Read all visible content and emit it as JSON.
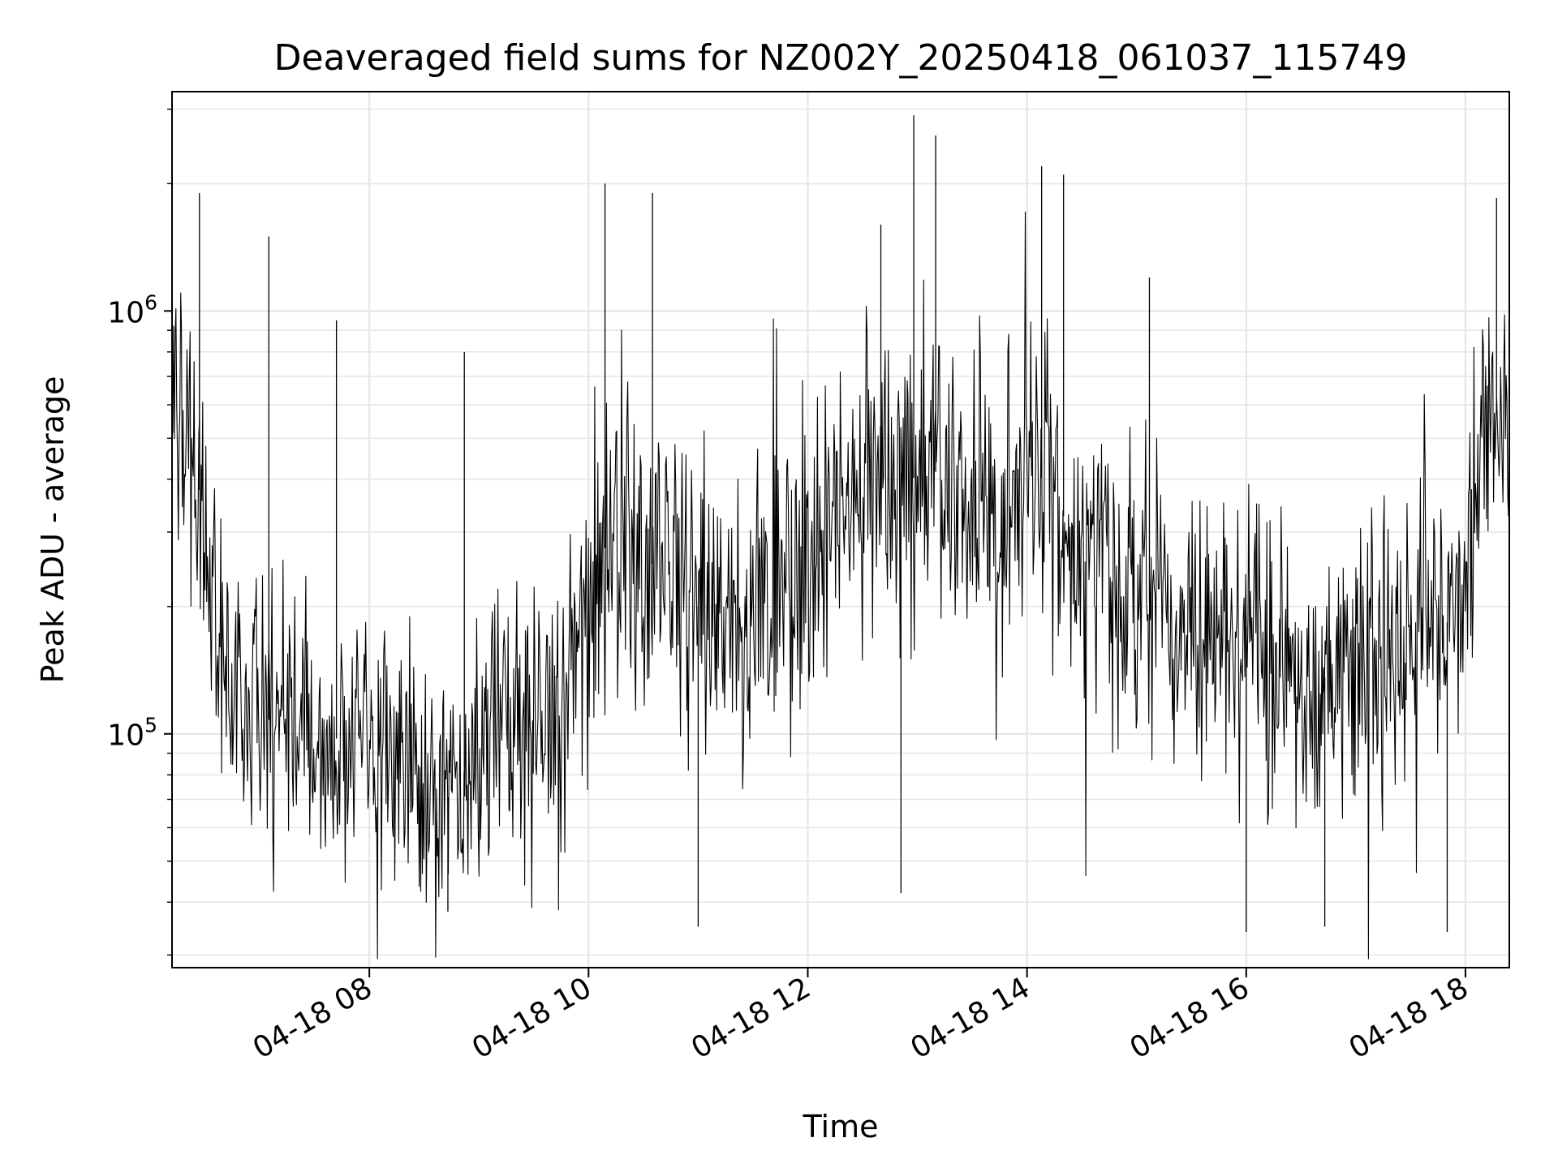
{
  "chart_data": {
    "type": "line",
    "title": "Deaveraged field sums for NZ002Y_20250418_061037_115749",
    "xlabel": "Time",
    "ylabel": "Peak ADU - average",
    "x_range": [
      "2025-04-18T06:12",
      "2025-04-18T18:24"
    ],
    "y_scale": "log",
    "y_range": [
      28000,
      3300000
    ],
    "x_ticks": [
      {
        "at": "2025-04-18T08:00",
        "label": "04-18 08"
      },
      {
        "at": "2025-04-18T10:00",
        "label": "04-18 10"
      },
      {
        "at": "2025-04-18T12:00",
        "label": "04-18 12"
      },
      {
        "at": "2025-04-18T14:00",
        "label": "04-18 14"
      },
      {
        "at": "2025-04-18T16:00",
        "label": "04-18 16"
      },
      {
        "at": "2025-04-18T18:00",
        "label": "04-18 18"
      }
    ],
    "y_ticks": [
      {
        "value": 100000,
        "base": "10",
        "exp": "5"
      },
      {
        "value": 1000000,
        "base": "10",
        "exp": "6"
      }
    ],
    "grid": true,
    "line_color": "#000000",
    "series": [
      {
        "x": [
          "2025-04-18T06:12",
          "2025-04-18T06:24",
          "2025-04-18T06:36",
          "2025-04-18T06:48",
          "2025-04-18T07:00",
          "2025-04-18T07:12",
          "2025-04-18T07:24",
          "2025-04-18T07:36",
          "2025-04-18T07:48",
          "2025-04-18T08:00",
          "2025-04-18T08:12",
          "2025-04-18T08:24",
          "2025-04-18T08:36",
          "2025-04-18T08:48",
          "2025-04-18T09:00",
          "2025-04-18T09:12",
          "2025-04-18T09:24",
          "2025-04-18T09:36",
          "2025-04-18T09:48",
          "2025-04-18T10:00",
          "2025-04-18T10:12",
          "2025-04-18T10:24",
          "2025-04-18T10:36",
          "2025-04-18T10:48",
          "2025-04-18T11:00",
          "2025-04-18T11:12",
          "2025-04-18T11:24",
          "2025-04-18T11:36",
          "2025-04-18T11:48",
          "2025-04-18T12:00",
          "2025-04-18T12:12",
          "2025-04-18T12:24",
          "2025-04-18T12:36",
          "2025-04-18T12:48",
          "2025-04-18T13:00",
          "2025-04-18T13:12",
          "2025-04-18T13:24",
          "2025-04-18T13:36",
          "2025-04-18T13:48",
          "2025-04-18T14:00",
          "2025-04-18T14:12",
          "2025-04-18T14:24",
          "2025-04-18T14:36",
          "2025-04-18T14:48",
          "2025-04-18T15:00",
          "2025-04-18T15:12",
          "2025-04-18T15:24",
          "2025-04-18T15:36",
          "2025-04-18T15:48",
          "2025-04-18T16:00",
          "2025-04-18T16:12",
          "2025-04-18T16:24",
          "2025-04-18T16:36",
          "2025-04-18T16:48",
          "2025-04-18T17:00",
          "2025-04-18T17:12",
          "2025-04-18T17:24",
          "2025-04-18T17:36",
          "2025-04-18T17:48",
          "2025-04-18T18:00",
          "2025-04-18T18:12",
          "2025-04-18T18:24"
        ],
        "center": [
          600000,
          450000,
          160000,
          120000,
          110000,
          105000,
          100000,
          95000,
          100000,
          100000,
          90000,
          80000,
          65000,
          75000,
          85000,
          95000,
          100000,
          105000,
          110000,
          200000,
          300000,
          280000,
          250000,
          230000,
          200000,
          180000,
          170000,
          190000,
          220000,
          260000,
          320000,
          350000,
          380000,
          420000,
          400000,
          420000,
          380000,
          350000,
          300000,
          450000,
          380000,
          300000,
          250000,
          220000,
          210000,
          200000,
          190000,
          170000,
          150000,
          180000,
          170000,
          140000,
          130000,
          140000,
          150000,
          150000,
          160000,
          170000,
          180000,
          200000,
          600000,
          550000
        ],
        "spread": [
          0.55,
          0.6,
          0.55,
          0.45,
          0.45,
          0.45,
          0.42,
          0.4,
          0.4,
          0.4,
          0.42,
          0.45,
          0.48,
          0.5,
          0.5,
          0.5,
          0.5,
          0.5,
          0.5,
          0.6,
          0.6,
          0.55,
          0.55,
          0.55,
          0.55,
          0.5,
          0.5,
          0.5,
          0.55,
          0.55,
          0.55,
          0.55,
          0.55,
          0.55,
          0.55,
          0.55,
          0.5,
          0.5,
          0.55,
          0.5,
          0.5,
          0.5,
          0.5,
          0.5,
          0.5,
          0.5,
          0.5,
          0.5,
          0.5,
          0.5,
          0.5,
          0.55,
          0.55,
          0.55,
          0.5,
          0.5,
          0.5,
          0.5,
          0.5,
          0.45,
          0.45,
          0.45
        ]
      }
    ],
    "spikes": [
      {
        "x": "2025-04-18T06:27",
        "y": 1900000
      },
      {
        "x": "2025-04-18T07:05",
        "y": 1500000
      },
      {
        "x": "2025-04-18T07:42",
        "y": 950000
      },
      {
        "x": "2025-04-18T08:52",
        "y": 800000
      },
      {
        "x": "2025-04-18T10:09",
        "y": 2000000
      },
      {
        "x": "2025-04-18T10:35",
        "y": 1900000
      },
      {
        "x": "2025-04-18T12:40",
        "y": 1600000
      },
      {
        "x": "2025-04-18T12:58",
        "y": 2900000
      },
      {
        "x": "2025-04-18T13:10",
        "y": 2600000
      },
      {
        "x": "2025-04-18T14:08",
        "y": 2200000
      },
      {
        "x": "2025-04-18T14:20",
        "y": 2100000
      },
      {
        "x": "2025-04-18T15:07",
        "y": 1200000
      },
      {
        "x": "2025-04-18T18:17",
        "y": 1850000
      },
      {
        "x": "2025-04-18T11:00",
        "y": 35000
      },
      {
        "x": "2025-04-18T16:00",
        "y": 34000
      },
      {
        "x": "2025-04-18T16:43",
        "y": 35000
      },
      {
        "x": "2025-04-18T17:50",
        "y": 34000
      },
      {
        "x": "2025-04-18T08:43",
        "y": 38000
      },
      {
        "x": "2025-04-18T12:51",
        "y": 42000
      }
    ]
  }
}
